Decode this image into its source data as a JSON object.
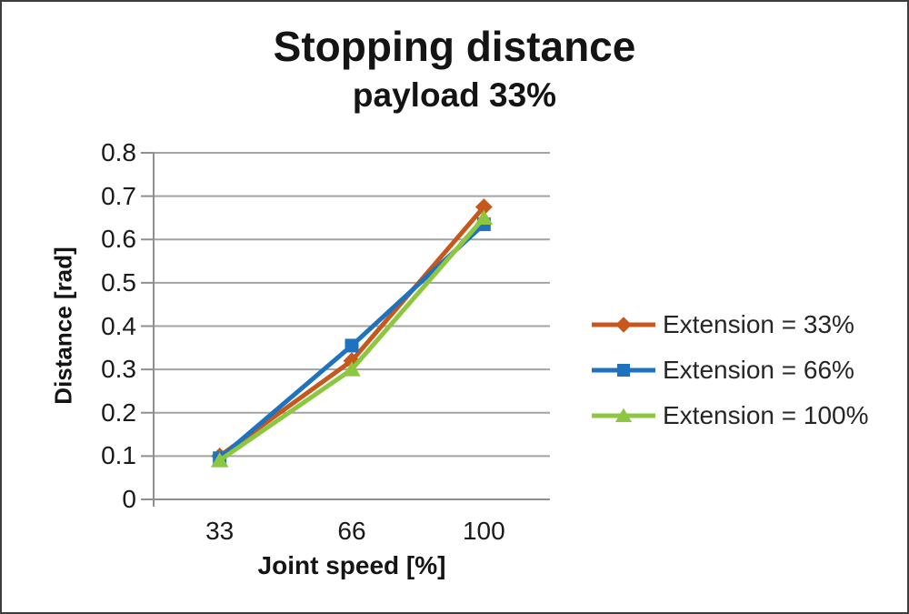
{
  "title": "Stopping distance",
  "subtitle": "payload 33%",
  "chart_data": {
    "type": "line",
    "categories": [
      33,
      66,
      100
    ],
    "x_tick_labels": [
      "33",
      "66",
      "100"
    ],
    "series": [
      {
        "name": "Extension = 33%",
        "values": [
          0.1,
          0.32,
          0.675
        ],
        "color": "#c6581c",
        "marker": "diamond"
      },
      {
        "name": "Extension = 66%",
        "values": [
          0.095,
          0.355,
          0.635
        ],
        "color": "#1f73be",
        "marker": "square"
      },
      {
        "name": "Extension = 100%",
        "values": [
          0.09,
          0.3,
          0.65
        ],
        "color": "#8dc63f",
        "marker": "triangle"
      }
    ],
    "xlabel": "Joint speed [%]",
    "ylabel": "Distance [rad]",
    "ylim": [
      0,
      0.8
    ],
    "y_ticks": [
      0,
      0.1,
      0.2,
      0.3,
      0.4,
      0.5,
      0.6,
      0.7,
      0.8
    ],
    "y_tick_labels": [
      "0",
      "0.1",
      "0.2",
      "0.3",
      "0.4",
      "0.5",
      "0.6",
      "0.7",
      "0.8"
    ],
    "grid": true,
    "legend_position": "right",
    "gridline_color": "#a3a3a3",
    "axis_color": "#8f8f8f"
  }
}
